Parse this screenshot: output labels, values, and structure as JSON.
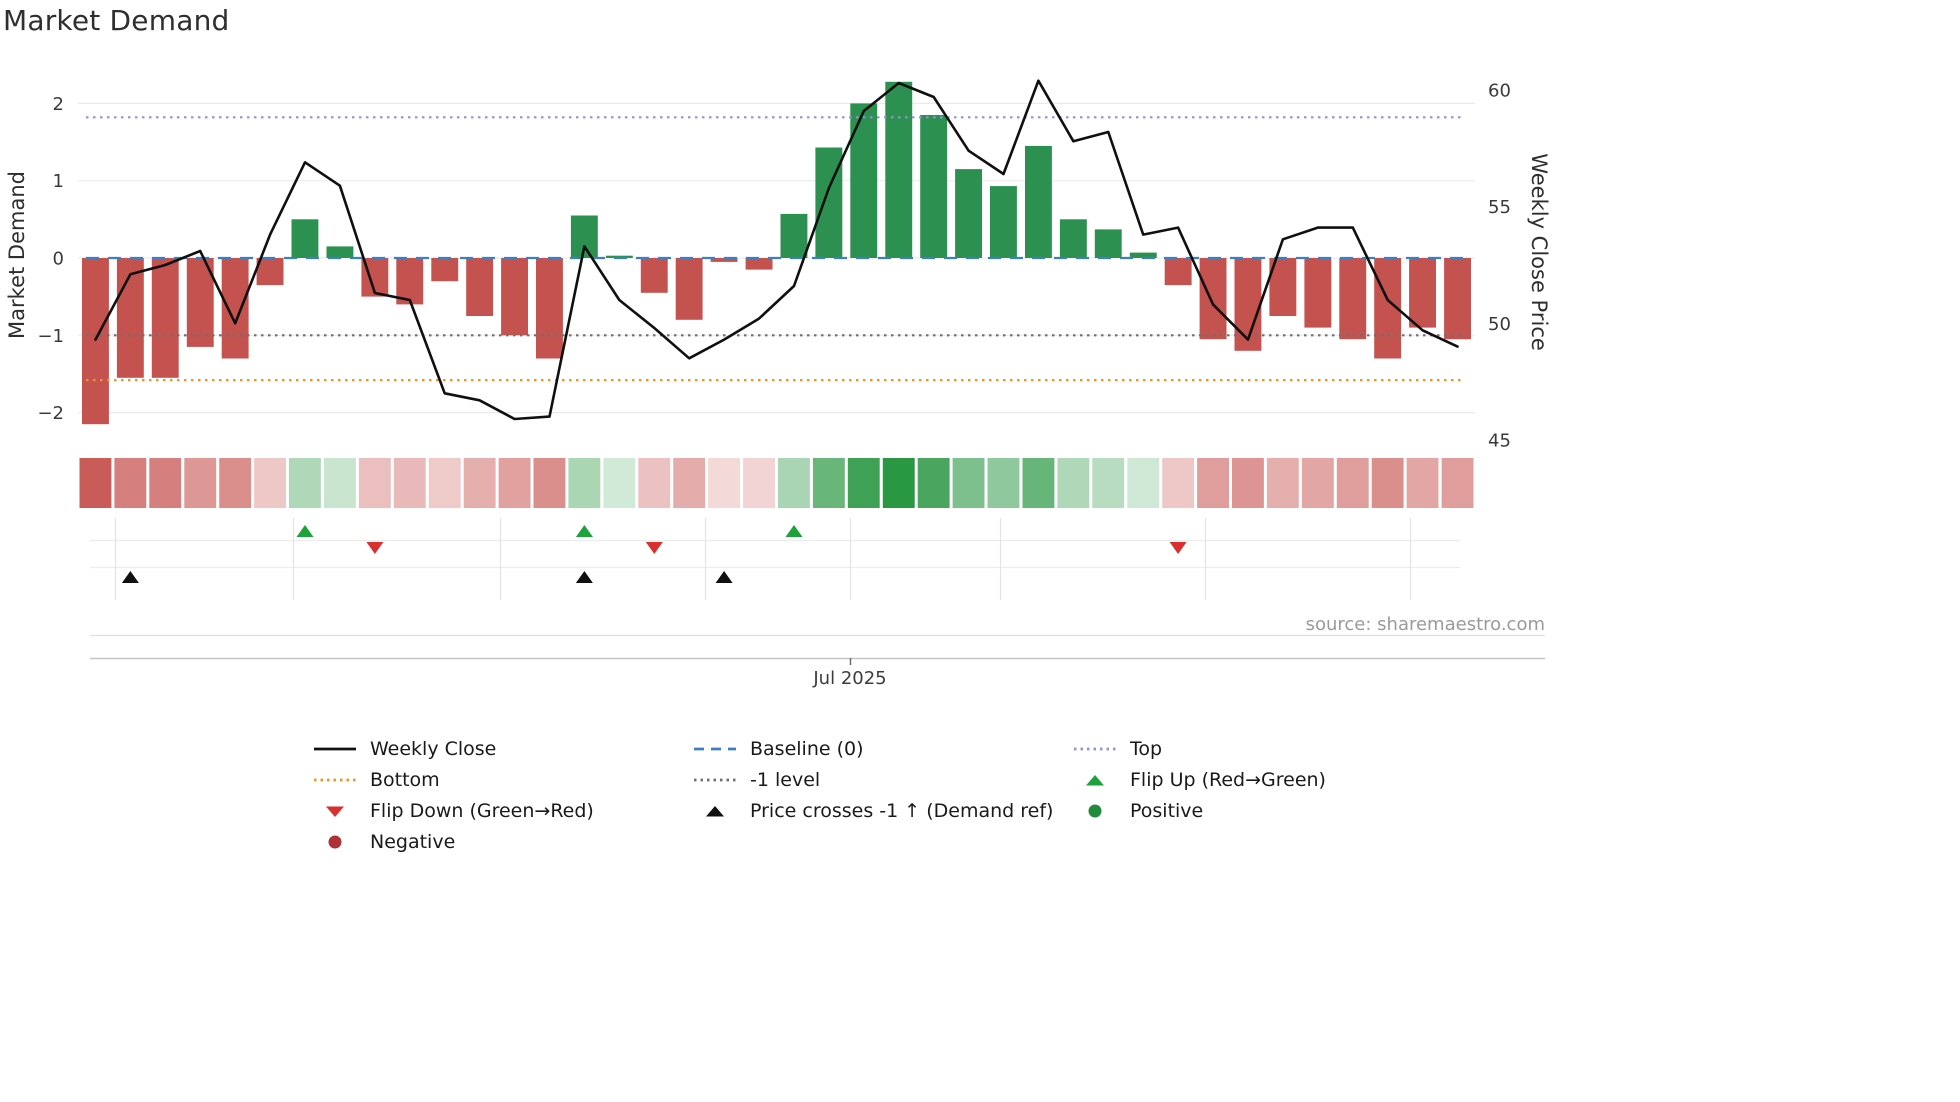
{
  "title": "Market Demand",
  "source_note": "source: sharemaestro.com",
  "axes": {
    "left_label": "Market Demand",
    "right_label": "Weekly Close Price",
    "left_tick_values": [
      2,
      1,
      0,
      -1,
      -2
    ],
    "left_tick_labels": [
      "2",
      "1",
      "0",
      "−1",
      "−2"
    ],
    "right_tick_values": [
      60,
      55,
      50,
      45
    ],
    "right_tick_labels": [
      "60",
      "55",
      "50",
      "45"
    ],
    "x_tick_label": "Jul 2025"
  },
  "chart_data": {
    "type": "bar",
    "title": "Market Demand",
    "n_points": 40,
    "x": "weekly (40 weeks, only Jul 2025 tick labeled)",
    "x_tick": {
      "label": "Jul 2025",
      "week_index": 22
    },
    "left_axis_range": [
      -2.55,
      2.55
    ],
    "right_axis_range": [
      44.4,
      61.1
    ],
    "series": [
      {
        "name": "Market Demand",
        "type": "bar",
        "axis": "left",
        "values": [
          -2.15,
          -1.55,
          -1.55,
          -1.15,
          -1.3,
          -0.35,
          0.5,
          0.15,
          -0.5,
          -0.6,
          -0.3,
          -0.75,
          -1.0,
          -1.3,
          0.55,
          0.03,
          -0.45,
          -0.8,
          -0.05,
          -0.15,
          0.57,
          1.43,
          2.0,
          2.28,
          1.85,
          1.15,
          0.93,
          1.45,
          0.5,
          0.37,
          0.07,
          -0.35,
          -1.05,
          -1.2,
          -0.75,
          -0.9,
          -1.05,
          -1.3,
          -0.9,
          -1.05
        ]
      },
      {
        "name": "Weekly Close",
        "type": "line",
        "axis": "right",
        "values": [
          49.3,
          52.1,
          52.5,
          53.1,
          50.0,
          53.8,
          56.9,
          55.9,
          51.3,
          51.0,
          47.0,
          46.7,
          45.9,
          46.0,
          53.3,
          51.0,
          49.8,
          48.5,
          49.3,
          50.2,
          51.6,
          55.8,
          59.1,
          60.3,
          59.7,
          57.4,
          56.4,
          60.4,
          57.8,
          58.2,
          53.8,
          54.1,
          50.8,
          49.3,
          53.6,
          54.1,
          54.1,
          51.0,
          49.7,
          49.0
        ]
      }
    ],
    "reference_lines": [
      {
        "id": "top",
        "name": "Top",
        "value": 1.82,
        "style": "dotted",
        "color": "#9191d9"
      },
      {
        "id": "minus1",
        "name": "-1 level",
        "value": -1,
        "style": "dotted",
        "color": "#6f6f6f"
      },
      {
        "id": "bottom",
        "name": "Bottom",
        "value": -1.58,
        "style": "dotted",
        "color": "#f39122"
      },
      {
        "id": "baseline",
        "name": "Baseline (0)",
        "value": 0,
        "style": "dashed",
        "color": "#3f7fbf"
      }
    ],
    "markers": {
      "flip_up": [
        7,
        15,
        21
      ],
      "flip_down": [
        9,
        17,
        32
      ],
      "price_cross_up": [
        2,
        15,
        19
      ]
    },
    "heatmap_strip": "bar values repeated as red/green intensity cells under main panel",
    "legend_position": "bottom",
    "grid": true
  },
  "legend": {
    "items": [
      {
        "label": "Weekly Close",
        "swatch": "line",
        "color": "#101010"
      },
      {
        "label": "Baseline (0)",
        "swatch": "dashed",
        "color": "#3f7fbf"
      },
      {
        "label": "Top",
        "swatch": "dotted",
        "color": "#9191d9"
      },
      {
        "label": "Bottom",
        "swatch": "dotted",
        "color": "#f39122"
      },
      {
        "label": "-1 level",
        "swatch": "dotted",
        "color": "#6f6f6f"
      },
      {
        "label": "Flip Up (Red→Green)",
        "swatch": "triangle-up",
        "color": "#1fa23b"
      },
      {
        "label": "Flip Down (Green→Red)",
        "swatch": "triangle-down",
        "color": "#d92f2f"
      },
      {
        "label": "Price crosses -1 ↑ (Demand ref)",
        "swatch": "triangle-up",
        "color": "#101010"
      },
      {
        "label": "Positive",
        "swatch": "circle",
        "color": "#218a3c"
      },
      {
        "label": "Negative",
        "swatch": "circle",
        "color": "#b03039"
      }
    ]
  },
  "colors": {
    "bar_negative": "#c4524f",
    "bar_positive": "#2c9150",
    "price_line": "#101010",
    "baseline": "#3f7fbf",
    "top_line": "#9191d9",
    "bottom_line": "#f39122",
    "minus1_line": "#6f6f6f",
    "flip_up": "#1fa23b",
    "flip_down": "#d92f2f",
    "price_cross": "#101010",
    "heat_positive_rgb": "40,150,65",
    "heat_negative_rgb": "198,83,80"
  }
}
